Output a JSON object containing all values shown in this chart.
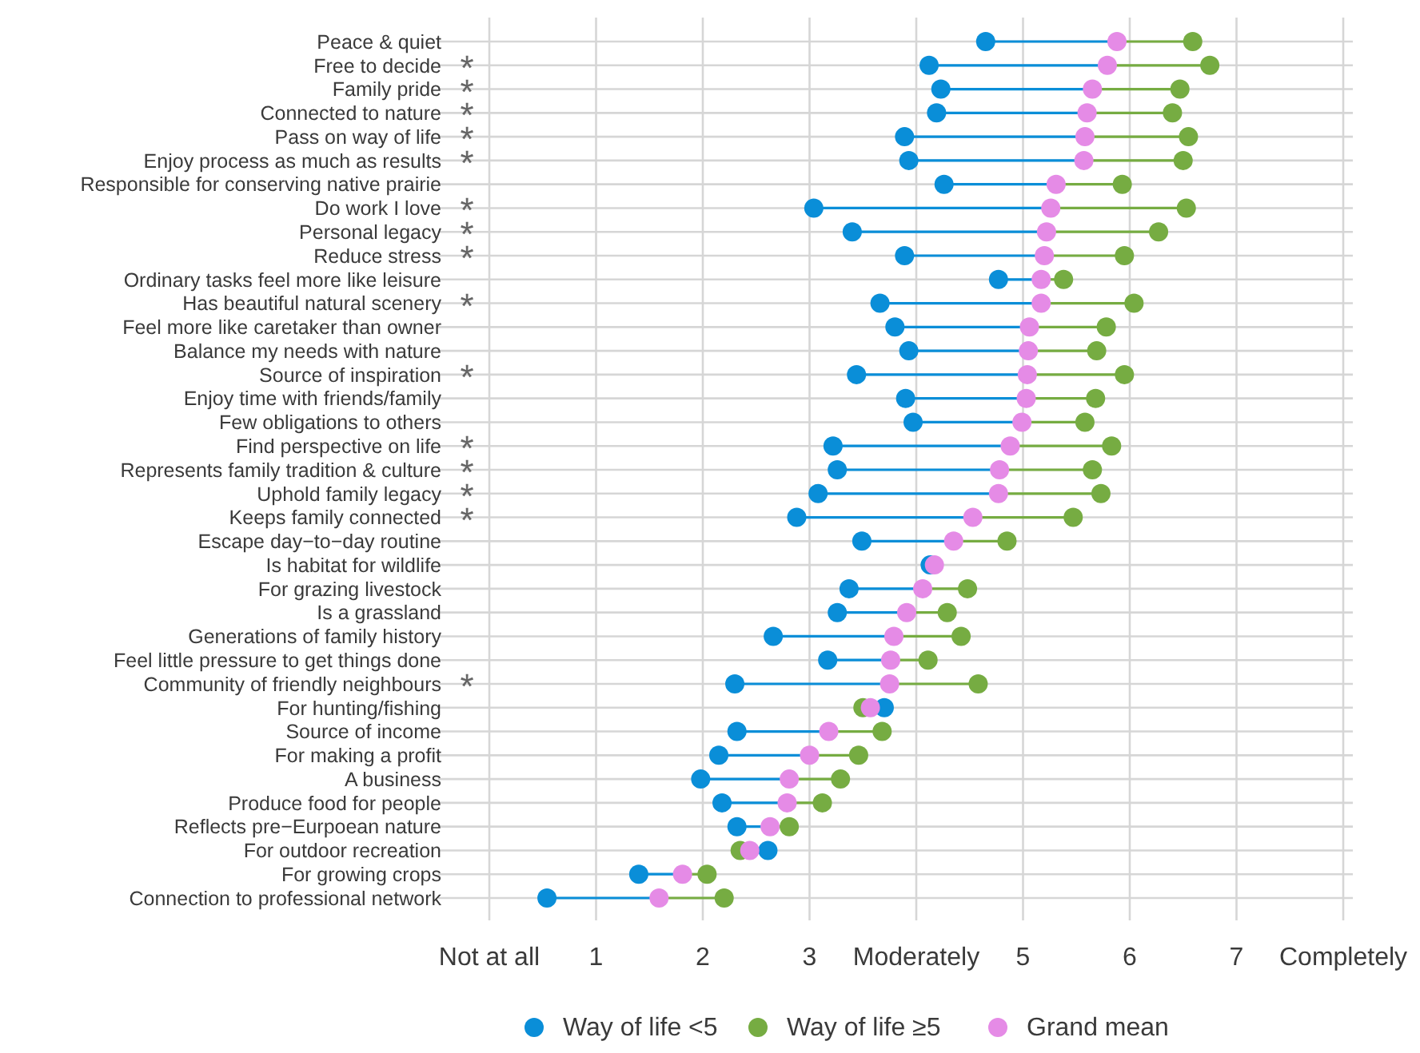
{
  "chart_data": {
    "type": "scatter",
    "orientation": "horizontal",
    "grid": true,
    "legend": "bottom",
    "marker": "circle",
    "categories": [
      "Peace & quiet",
      "Free to decide",
      "Family pride",
      "Connected to nature",
      "Pass on way of life",
      "Enjoy process as much as results",
      "Responsible for conserving native prairie",
      "Do work I love",
      "Personal legacy",
      "Reduce stress",
      "Ordinary tasks feel more like leisure",
      "Has beautiful natural scenery",
      "Feel more like caretaker than owner",
      "Balance my needs with nature",
      "Source of inspiration",
      "Enjoy time with friends/family",
      "Few obligations to others",
      "Find perspective on life",
      "Represents family tradition & culture",
      "Uphold family legacy",
      "Keeps family connected",
      "Escape day−to−day routine",
      "Is habitat for wildlife",
      "For grazing livestock",
      "Is a grassland",
      "Generations of family history",
      "Feel little pressure to get things done",
      "Community of friendly neighbours",
      "For hunting/fishing",
      "Source of income",
      "For making a profit",
      "A business",
      "Produce food for people",
      "Reflects pre−Eurpoean nature",
      "For outdoor recreation",
      "For growing crops",
      "Connection to professional network"
    ],
    "xlim": [
      0,
      8
    ],
    "xticks": [
      {
        "value": 0,
        "label": "Not at all"
      },
      1,
      2,
      3,
      {
        "value": 4,
        "label": "Moderately"
      },
      5,
      6,
      7,
      {
        "value": 8,
        "label": "Completely"
      }
    ],
    "series": [
      {
        "name": "Way of life <5",
        "color": "#0a8ed8",
        "values": [
          4.65,
          4.12,
          4.23,
          4.19,
          3.89,
          3.93,
          4.26,
          3.04,
          3.4,
          3.89,
          4.77,
          3.66,
          3.8,
          3.93,
          3.44,
          3.9,
          3.97,
          3.22,
          3.26,
          3.08,
          2.88,
          3.49,
          4.13,
          3.37,
          3.26,
          2.66,
          3.17,
          2.3,
          3.7,
          2.32,
          2.15,
          1.98,
          2.18,
          2.32,
          2.61,
          1.4,
          0.54
        ]
      },
      {
        "name": "Way of life ≥5",
        "color": "#76ac42",
        "values": [
          6.59,
          6.75,
          6.47,
          6.4,
          6.55,
          6.5,
          5.93,
          6.53,
          6.27,
          5.95,
          5.38,
          6.04,
          5.78,
          5.69,
          5.95,
          5.68,
          5.58,
          5.83,
          5.65,
          5.73,
          5.47,
          4.85,
          null,
          4.48,
          4.29,
          4.42,
          4.11,
          4.58,
          3.5,
          3.68,
          3.46,
          3.29,
          3.12,
          2.81,
          2.35,
          2.04,
          2.2
        ]
      },
      {
        "name": "Grand mean",
        "color": "#e58be6",
        "values": [
          5.88,
          5.79,
          5.65,
          5.6,
          5.58,
          5.57,
          5.31,
          5.26,
          5.22,
          5.2,
          5.17,
          5.17,
          5.06,
          5.05,
          5.04,
          5.03,
          4.99,
          4.88,
          4.78,
          4.77,
          4.53,
          4.35,
          4.17,
          4.06,
          3.91,
          3.79,
          3.76,
          3.75,
          3.57,
          3.18,
          3.0,
          2.81,
          2.79,
          2.63,
          2.44,
          1.81,
          1.59
        ]
      }
    ],
    "annotations": [
      null,
      "*",
      "*",
      "*",
      "*",
      "*",
      null,
      "*",
      "*",
      "*",
      null,
      "*",
      null,
      null,
      "*",
      null,
      null,
      "*",
      "*",
      "*",
      "*",
      null,
      null,
      null,
      null,
      null,
      null,
      "*",
      null,
      null,
      null,
      null,
      null,
      null,
      null,
      null,
      null
    ]
  }
}
